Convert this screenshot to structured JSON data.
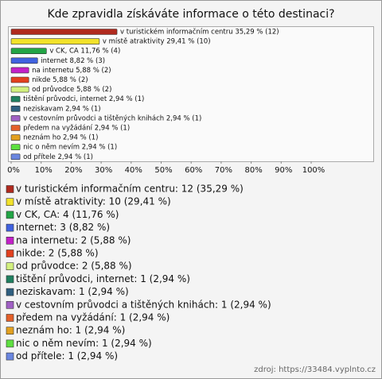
{
  "chart_data": {
    "type": "barh",
    "title": "Kde zpravidla získáváte informace o této destinaci?",
    "categories": [
      "v turistickém informačním centru",
      "v místě atraktivity",
      "v CK, CA",
      "internet",
      "na internetu",
      "nikde",
      "od průvodce",
      "tištění průvodci, internet",
      "neziskavam",
      "v cestovním průvodci a tištěných knihách",
      "předem na vyžádání",
      "neznám ho",
      "nic o něm nevím",
      "od přítele"
    ],
    "values": [
      35.29,
      29.41,
      11.76,
      8.82,
      5.88,
      5.88,
      5.88,
      2.94,
      2.94,
      2.94,
      2.94,
      2.94,
      2.94,
      2.94
    ],
    "value_labels": [
      "v turistickém informačním centru 35,29 % (12)",
      "v místě atraktivity 29,41 % (10)",
      "v CK, CA 11,76 % (4)",
      "internet 8,82 % (3)",
      "na internetu 5,88 % (2)",
      "nikde 5,88 % (2)",
      "od průvodce 5,88 % (2)",
      "tištění průvodci, internet 2,94 % (1)",
      "neziskavam 2,94 % (1)",
      "v cestovním průvodci a tištěných knihách 2,94 % (1)",
      "předem na vyžádání 2,94 % (1)",
      "neznám ho 2,94 % (1)",
      "nic o něm nevím 2,94 % (1)",
      "od přítele 2,94 % (1)"
    ],
    "legend_labels": [
      "v turistickém informačním centru: 12 (35,29 %)",
      "v místě atraktivity: 10 (29,41 %)",
      "v CK, CA: 4 (11,76 %)",
      "internet: 3 (8,82 %)",
      "na internetu: 2 (5,88 %)",
      "nikde: 2 (5,88 %)",
      "od průvodce: 2 (5,88 %)",
      "tištění průvodci, internet: 1 (2,94 %)",
      "neziskavam: 1 (2,94 %)",
      "v cestovním průvodci a tištěných knihách: 1 (2,94 %)",
      "předem na vyžádání: 1 (2,94 %)",
      "neznám ho: 1 (2,94 %)",
      "nic o něm nevím: 1 (2,94 %)",
      "od přítele: 1 (2,94 %)"
    ],
    "colors": [
      "#b02a1e",
      "#f2e22a",
      "#22a545",
      "#4062e0",
      "#c321c8",
      "#e2401e",
      "#d2f07e",
      "#1f8060",
      "#2f5f80",
      "#a060c4",
      "#e4602a",
      "#e2a020",
      "#5ee040",
      "#6a86e0"
    ],
    "xlim": [
      0,
      100
    ],
    "xticks": [
      {
        "value": 0,
        "label": "0%"
      },
      {
        "value": 10,
        "label": "10%"
      },
      {
        "value": 20,
        "label": "20%"
      },
      {
        "value": 30,
        "label": "30%"
      },
      {
        "value": 40,
        "label": "40%"
      },
      {
        "value": 50,
        "label": "50%"
      },
      {
        "value": 60,
        "label": "60%"
      },
      {
        "value": 70,
        "label": "70%"
      },
      {
        "value": 80,
        "label": "80%"
      },
      {
        "value": 90,
        "label": "90%"
      },
      {
        "value": 100,
        "label": "100%"
      }
    ],
    "source": "zdroj: https://33484.vyplnto.cz"
  }
}
